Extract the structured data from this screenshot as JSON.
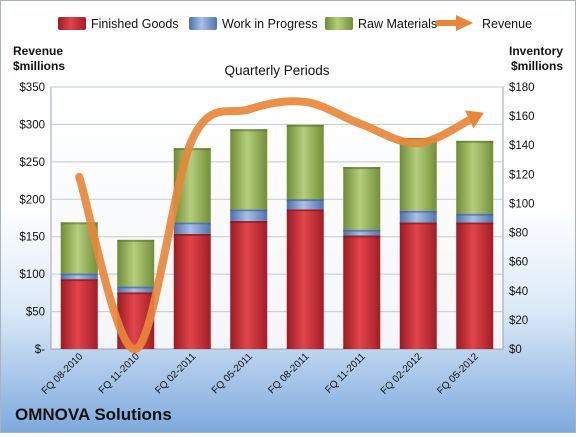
{
  "chart_data": {
    "type": "bar",
    "stacked": true,
    "title": "Quarterly Periods",
    "left_axis_label": [
      "Revenue",
      "$millions"
    ],
    "right_axis_label": [
      "Inventory",
      "$millions"
    ],
    "categories": [
      "FQ 08-2010",
      "FQ 11-2010",
      "FQ 02-2011",
      "FQ 05-2011",
      "FQ 08-2011",
      "FQ 11-2011",
      "FQ 02-2012",
      "FQ 05-2012"
    ],
    "left_ticks": [
      "$-",
      "$50",
      "$100",
      "$150",
      "$200",
      "$250",
      "$300",
      "$350"
    ],
    "right_ticks": [
      "$0",
      "$20",
      "$40",
      "$60",
      "$80",
      "$100",
      "$120",
      "$140",
      "$160",
      "$180"
    ],
    "left_range": [
      0,
      350
    ],
    "right_range": [
      0,
      180
    ],
    "series": [
      {
        "name": "Finished Goods",
        "axis": "right",
        "color": "#c0252e",
        "values": [
          48,
          39,
          79,
          88,
          96,
          78,
          87,
          87
        ]
      },
      {
        "name": "Work in Progress",
        "axis": "right",
        "color": "#6d8fc4",
        "values": [
          4,
          4,
          8,
          8,
          7,
          4,
          8,
          6
        ]
      },
      {
        "name": "Raw Materials",
        "axis": "right",
        "color": "#8fae4e",
        "values": [
          35,
          32,
          51,
          55,
          51,
          43,
          50,
          50
        ]
      },
      {
        "name": "Revenue",
        "axis": "left",
        "type": "line",
        "color": "#e8873a",
        "values": [
          230,
          0,
          280,
          320,
          330,
          300,
          275,
          310
        ]
      }
    ],
    "legend_position": "top",
    "gridlines": true
  },
  "company_name": "OMNOVA Solutions"
}
